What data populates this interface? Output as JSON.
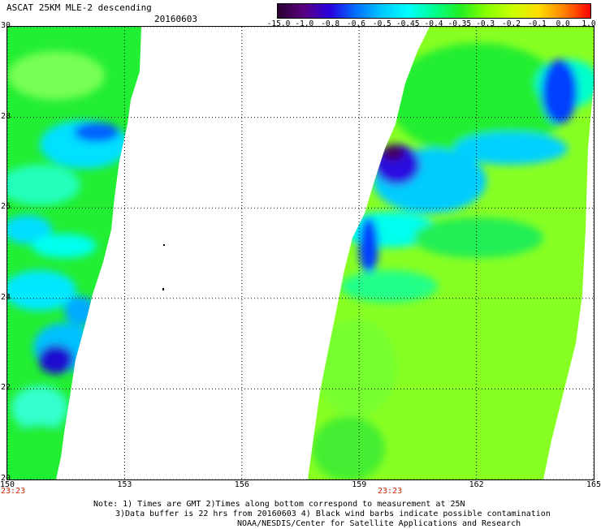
{
  "header": {
    "title": "ASCAT 25KM MLE-2 descending",
    "date": "20160603"
  },
  "colorbar": {
    "labels": [
      "-15.0",
      "-1.0",
      "-0.8",
      "-0.6",
      "-0.5",
      "-0.45",
      "-0.4",
      "-0.35",
      "-0.3",
      "-0.2",
      "-0.1",
      "0.0",
      "1.0"
    ],
    "colors": [
      "#2a0030",
      "#5a0080",
      "#2a00e0",
      "#0070ff",
      "#00c8ff",
      "#00ffff",
      "#00ff90",
      "#22ee22",
      "#88ff00",
      "#c8ff00",
      "#ffdd00",
      "#ff8000",
      "#ff0000"
    ]
  },
  "map": {
    "lon_labels": [
      "150",
      "153",
      "156",
      "159",
      "162",
      "165"
    ],
    "lat_labels": [
      "30",
      "28",
      "26",
      "24",
      "22",
      "20"
    ],
    "pass_times": [
      "23:23",
      "23:23"
    ],
    "lon_range": [
      150,
      165
    ],
    "lat_range": [
      20,
      30
    ],
    "gridlines": "dotted",
    "swaths": [
      {
        "name": "west-swath",
        "value_range": [
          -0.8,
          -0.35
        ]
      },
      {
        "name": "east-swath",
        "value_range": [
          -1.0,
          -0.2
        ]
      }
    ]
  },
  "notes": [
    "Note: 1) Times are GMT 2)Times along bottom correspond to measurement at 25N",
    "3)Data buffer is 22 hrs from 20160603 4) Black wind barbs indicate possible contamination",
    "NOAA/NESDIS/Center for Satellite Applications and Research"
  ]
}
